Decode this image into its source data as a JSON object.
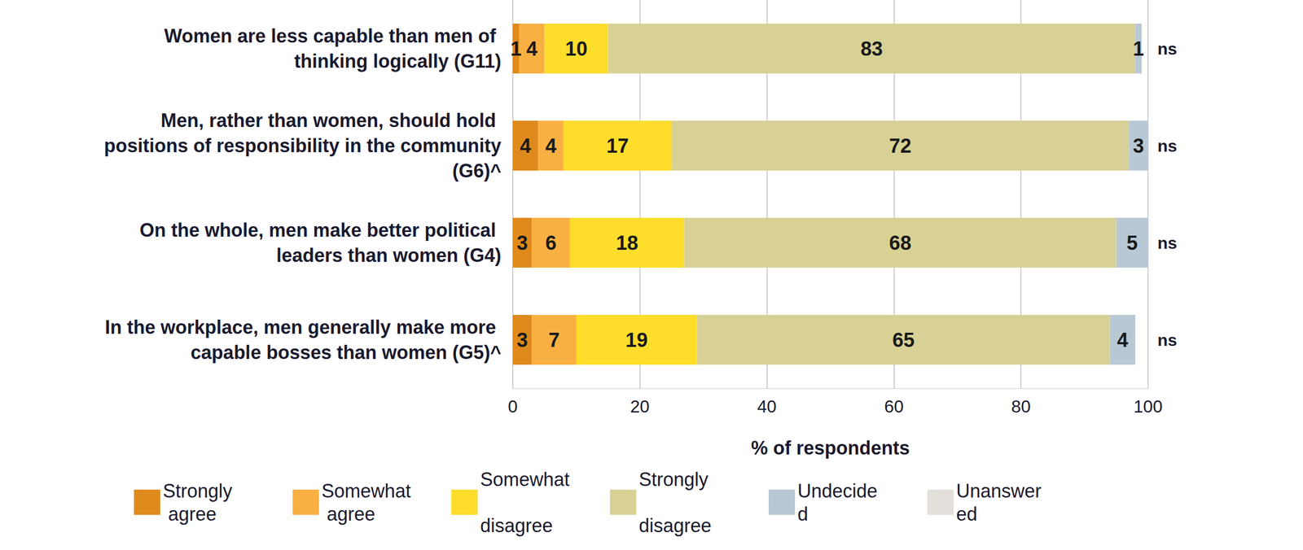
{
  "chart_data": {
    "type": "bar",
    "orientation": "horizontal",
    "stacked": true,
    "data_labels": true,
    "grid": true,
    "x_label": "% of respondents",
    "categories": [
      "Women are less capable than men of thinking logically (G11)",
      "Men, rather than women, should hold positions of responsibility in the community (G6)^",
      "On the whole, men make better political leaders than women (G4)",
      "In the workplace, men generally make more capable bosses than women (G5)^"
    ],
    "annotations": [
      "ns",
      "ns",
      "ns",
      "ns"
    ],
    "xlim": [
      0,
      100
    ],
    "xticks": [
      0,
      20,
      40,
      60,
      80,
      100
    ],
    "legend": "bottom",
    "series": [
      {
        "name": "Strongly agree",
        "color": "#df8a1d",
        "values": [
          1,
          4,
          3,
          3
        ]
      },
      {
        "name": "Somewhat agree",
        "color": "#f9b043",
        "values": [
          4,
          4,
          6,
          7
        ]
      },
      {
        "name": "Somewhat disagree",
        "color": "#fedd2b",
        "values": [
          10,
          17,
          18,
          19
        ]
      },
      {
        "name": "Strongly disagree",
        "color": "#d8d196",
        "values": [
          83,
          72,
          68,
          65
        ]
      },
      {
        "name": "Undecided",
        "color": "#b8c8d5",
        "values": [
          1,
          3,
          5,
          4
        ]
      },
      {
        "name": "Unanswered",
        "color": "#e3dfdb",
        "values": [
          0,
          0,
          0,
          0
        ]
      }
    ]
  }
}
